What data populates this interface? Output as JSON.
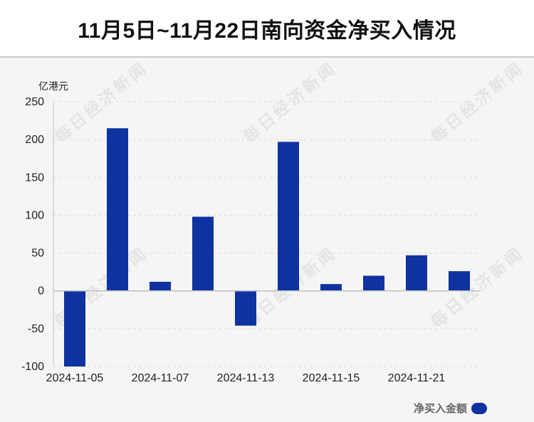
{
  "title": "11月5日~11月22日南向资金净买入情况",
  "unit_label": "亿港元",
  "watermark_text": "每日经济新闻",
  "legend": {
    "label": "净买入金额"
  },
  "colors": {
    "bar": "#0e33a0",
    "grid": "#dddddd",
    "axis": "#bfbfbf"
  },
  "chart_data": {
    "type": "bar",
    "ylabel": "亿港元",
    "ylim": [
      -100,
      250
    ],
    "yticks": [
      250,
      200,
      150,
      100,
      50,
      0,
      -50,
      -100
    ],
    "grid": true,
    "legend_position": "bottom-right",
    "xtick_labels": [
      "2024-11-05",
      "2024-11-07",
      "2024-11-13",
      "2024-11-15",
      "2024-11-21"
    ],
    "series": [
      {
        "name": "净买入金额",
        "values": [
          -100,
          215,
          12,
          98,
          -46,
          197,
          9,
          20,
          47,
          26
        ]
      }
    ]
  }
}
